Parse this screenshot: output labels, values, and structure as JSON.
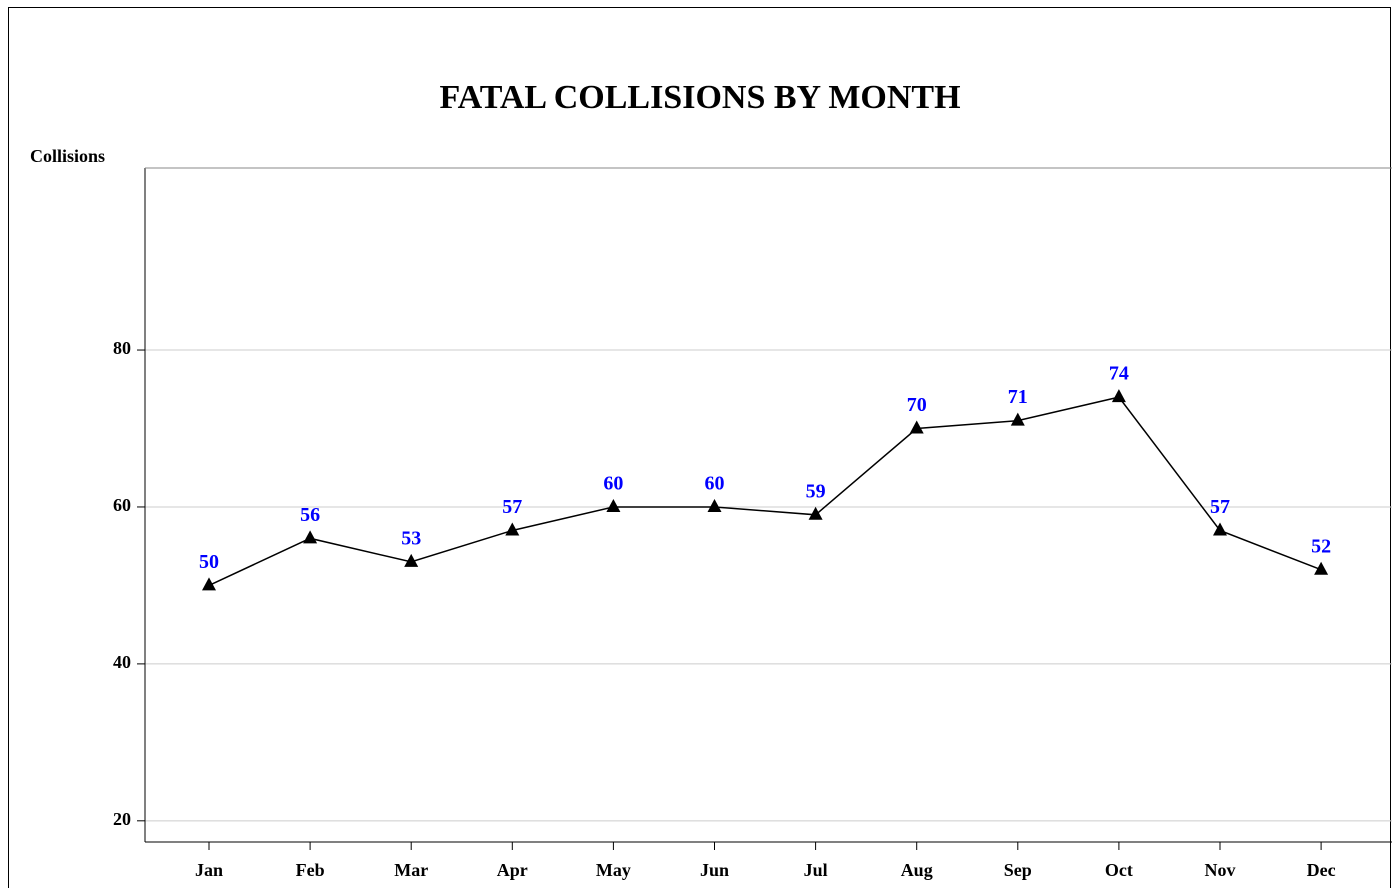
{
  "chart_data": {
    "type": "line",
    "title": "FATAL COLLISIONS BY MONTH",
    "y_label": "Collisions",
    "categories": [
      "Jan",
      "Feb",
      "Mar",
      "Apr",
      "May",
      "Jun",
      "Jul",
      "Aug",
      "Sep",
      "Oct",
      "Nov",
      "Dec"
    ],
    "series": [
      {
        "name": "Collisions",
        "color": "#000000",
        "label_color": "#0000ff",
        "values": [
          50,
          56,
          53,
          57,
          60,
          60,
          59,
          70,
          71,
          74,
          57,
          52
        ]
      }
    ],
    "ylim": [
      17.3,
      103.2
    ],
    "yticks": [
      20,
      40,
      60,
      80
    ],
    "grid": true
  }
}
